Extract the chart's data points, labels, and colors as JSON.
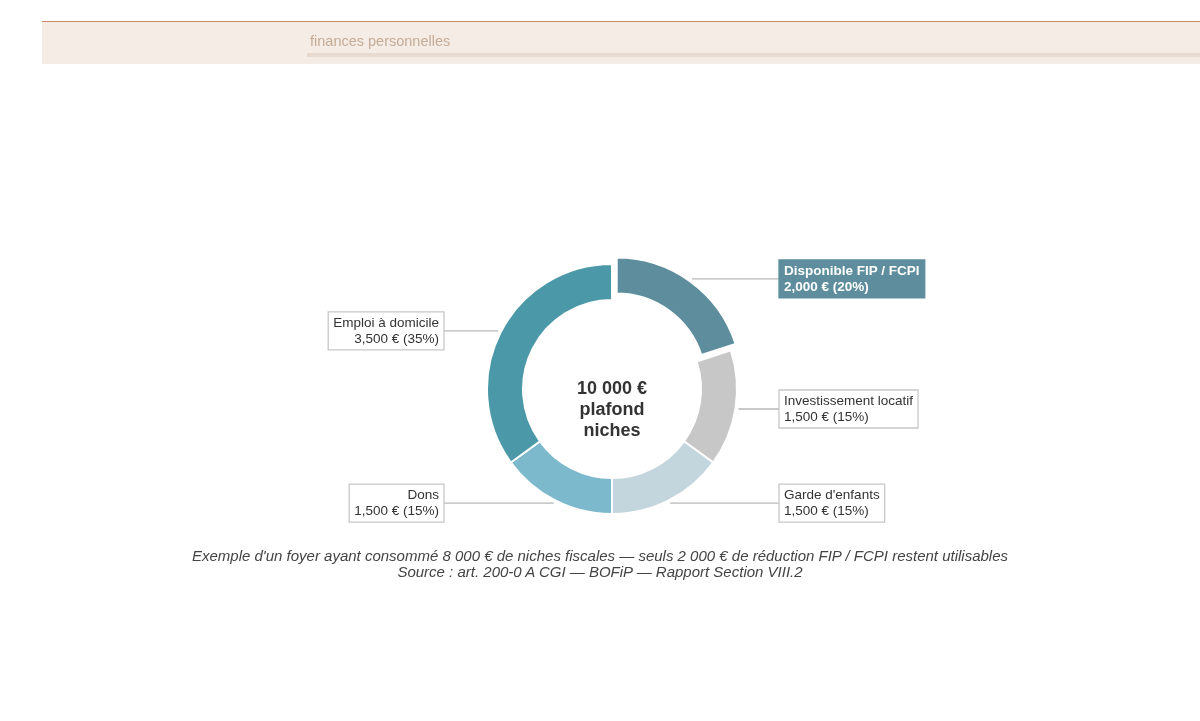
{
  "chart_data": {
    "type": "donut",
    "subtitle": "finances personnelles",
    "categories": [
      "Disponible FIP / FCPI",
      "Investissement locatif",
      "Garde d'enfants",
      "Dons",
      "Emploi à domicile"
    ],
    "values": [
      2000,
      1500,
      1500,
      1500,
      3500
    ],
    "colors": [
      "#5e8e9e",
      "#c7c7c7",
      "#c4d6dd",
      "#7db9cc",
      "#4b99a8"
    ],
    "value_labels": [
      "2,000 € (20%)",
      "1,500 € (15%)",
      "1,500 € (15%)",
      "1,500 € (15%)",
      "3,500 € (35%)"
    ],
    "annotations": [
      "10 000 €\nplafond\nniches",
      "Exemple d'un foyer ayant consommé 8 000 € de niches fiscales — seuls 2 000 € de réduction FIP / FCPI restent utilisables",
      "Source : art. 200-0 A CGI — BOFiP — Rapport Section VIII.2"
    ]
  }
}
